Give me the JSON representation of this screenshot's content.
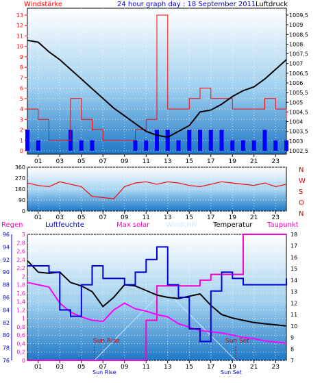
{
  "header": {
    "left_label": "Windstärke",
    "title": "24 hour graph day : 18 September 2011",
    "right_label": "Luftdruck"
  },
  "colors": {
    "wind": "#ff0000",
    "gust": "#0000ff",
    "pressure": "#000000",
    "frame": "#000000",
    "panel_top": "#ffffff",
    "panel_bottom": "#1e78c8",
    "humidity": "#0000dd",
    "solar": "#ff00cc",
    "windchill": "#c8e6ff",
    "temperature": "#000000",
    "dewpoint": "#ff00ff",
    "rain": "#ff0000",
    "sun_marker": "#cc0000"
  },
  "chart_data": [
    {
      "id": "wind-pressure",
      "type": "line",
      "x": {
        "ticks": [
          "01",
          "03",
          "05",
          "07",
          "09",
          "11",
          "13",
          "15",
          "17",
          "19",
          "21",
          "23"
        ]
      },
      "y_left": {
        "label": "Windstärke",
        "ticks": [
          "0",
          "1",
          "2",
          "3",
          "4",
          "5",
          "6",
          "7",
          "8",
          "9",
          "10",
          "11",
          "12",
          "13"
        ],
        "range": [
          0,
          13
        ]
      },
      "y_right": {
        "label": "Luftdruck",
        "ticks": [
          "1002,5",
          "1003",
          "1003,5",
          "1004",
          "1004,5",
          "1005",
          "1005,5",
          "1006",
          "1006,5",
          "1007",
          "1007,5",
          "1008",
          "1008,5",
          "1009",
          "1009,5"
        ],
        "range": [
          1002.5,
          1009.5
        ]
      },
      "series": [
        {
          "name": "Luftdruck",
          "axis": "right",
          "x": [
            0,
            1,
            2,
            3,
            4,
            5,
            6,
            7,
            8,
            9,
            10,
            11,
            12,
            13,
            14,
            15,
            16,
            17,
            18,
            19,
            20,
            21,
            22,
            23,
            24
          ],
          "values": [
            1008.2,
            1008.1,
            1007.6,
            1007.2,
            1006.7,
            1006.2,
            1005.7,
            1005.2,
            1004.7,
            1004.3,
            1003.9,
            1003.5,
            1003.3,
            1003.2,
            1003.5,
            1003.8,
            1004.5,
            1004.6,
            1004.9,
            1005.3,
            1005.6,
            1005.8,
            1006.2,
            1006.7,
            1007.2
          ]
        },
        {
          "name": "Wind",
          "axis": "left",
          "x": [
            0,
            1,
            2,
            3,
            4,
            5,
            6,
            7,
            8,
            9,
            10,
            11,
            12,
            13,
            14,
            15,
            16,
            17,
            18,
            19,
            20,
            21,
            22,
            23,
            24
          ],
          "values": [
            4,
            3,
            1,
            1,
            5,
            3,
            2,
            1,
            1,
            1,
            2,
            3,
            13,
            4,
            4,
            5,
            6,
            5,
            5,
            4,
            4,
            4,
            5,
            4,
            3
          ]
        },
        {
          "name": "Böen",
          "axis": "left",
          "x": [
            0,
            1,
            2,
            3,
            4,
            5,
            6,
            7,
            8,
            9,
            10,
            11,
            12,
            13,
            14,
            15,
            16,
            17,
            18,
            19,
            20,
            21,
            22,
            23,
            24
          ],
          "values": [
            2,
            1,
            0,
            0,
            2,
            1,
            1,
            0,
            0,
            0,
            1,
            1,
            2,
            2,
            1,
            2,
            2,
            2,
            2,
            1,
            1,
            1,
            2,
            1,
            1
          ]
        }
      ]
    },
    {
      "id": "wind-direction",
      "type": "line",
      "x": {
        "ticks": [
          "01",
          "03",
          "05",
          "07",
          "09",
          "11",
          "13",
          "15",
          "17",
          "19",
          "21",
          "23"
        ]
      },
      "y_left": {
        "ticks": [
          "360",
          "270",
          "180",
          "90",
          "0"
        ],
        "range": [
          0,
          360
        ]
      },
      "y_right": {
        "ticks": [
          "N",
          "W",
          "S",
          "O",
          "N"
        ]
      },
      "series": [
        {
          "name": "Windrichtung",
          "x": [
            0,
            1,
            2,
            3,
            4,
            5,
            6,
            7,
            8,
            9,
            10,
            11,
            12,
            13,
            14,
            15,
            16,
            17,
            18,
            19,
            20,
            21,
            22,
            23,
            24
          ],
          "values": [
            230,
            210,
            200,
            240,
            220,
            200,
            120,
            110,
            100,
            200,
            230,
            240,
            220,
            240,
            230,
            210,
            200,
            220,
            240,
            230,
            220,
            210,
            230,
            200,
            220
          ]
        }
      ]
    },
    {
      "id": "weather-combined",
      "type": "line",
      "legend": [
        "Regen",
        "Luftfeuchte",
        "Max solar",
        "Windchill",
        "Temperatur",
        "Taupunkt"
      ],
      "x": {
        "ticks": [
          "01",
          "03",
          "05",
          "07",
          "09",
          "11",
          "13",
          "15",
          "17",
          "19",
          "21",
          "23"
        ]
      },
      "y_rain": {
        "label": "Regen",
        "ticks": [
          "0",
          "0,2",
          "0,4",
          "0,6",
          "0,8",
          "1",
          "1,2",
          "1,4",
          "1,6",
          "1,8",
          "2",
          "2,2",
          "2,4",
          "2,6",
          "2,8",
          "3"
        ],
        "range": [
          0,
          3
        ]
      },
      "y_humidity": {
        "label": "Luftfeuchte",
        "ticks": [
          "76",
          "78",
          "80",
          "82",
          "84",
          "86",
          "88",
          "90",
          "92",
          "94",
          "96"
        ],
        "range": [
          76,
          96
        ]
      },
      "y_temp": {
        "label": "Temperatur",
        "ticks": [
          "7",
          "8",
          "9",
          "10",
          "11",
          "12",
          "13",
          "14",
          "15",
          "16",
          "17",
          "18"
        ],
        "range": [
          7,
          18
        ]
      },
      "annotations": {
        "sun_rise": "Sun Rise",
        "sun_set": "Sun Set",
        "sun_rise_axis": "Sun Rise",
        "sun_set_axis": "Sun Set"
      },
      "series": [
        {
          "name": "Luftfeuchte",
          "x": [
            0,
            1,
            2,
            3,
            4,
            5,
            6,
            7,
            8,
            9,
            10,
            11,
            12,
            13,
            14,
            15,
            16,
            17,
            18,
            19,
            20,
            21,
            22,
            23,
            24
          ],
          "values": [
            91,
            91,
            90,
            84,
            83,
            88,
            91,
            89,
            89,
            88,
            90,
            92,
            94,
            88,
            86,
            81,
            79,
            87,
            90,
            89,
            88,
            88,
            88,
            88,
            89
          ]
        },
        {
          "name": "Temperatur",
          "x": [
            0,
            1,
            2,
            3,
            4,
            5,
            6,
            7,
            8,
            9,
            10,
            11,
            12,
            13,
            14,
            15,
            16,
            17,
            18,
            19,
            20,
            21,
            22,
            23,
            24
          ],
          "values": [
            15.7,
            14.7,
            14.6,
            14.7,
            13.8,
            13.5,
            13.0,
            11.7,
            12.5,
            13.6,
            13.5,
            13.1,
            12.7,
            12.5,
            12.4,
            12.6,
            12.8,
            11.8,
            11.0,
            10.7,
            10.5,
            10.3,
            10.2,
            10.1,
            10.0
          ]
        },
        {
          "name": "Taupunkt",
          "x": [
            0,
            1,
            2,
            3,
            4,
            5,
            6,
            7,
            8,
            9,
            10,
            11,
            12,
            13,
            14,
            15,
            16,
            17,
            18,
            19,
            20,
            21,
            22,
            23,
            24
          ],
          "values": [
            13.8,
            13.6,
            13.4,
            12.0,
            11.2,
            10.8,
            10.5,
            10.4,
            11.4,
            12.0,
            11.5,
            11.3,
            11.0,
            10.8,
            10.2,
            9.9,
            9.6,
            9.5,
            9.4,
            9.2,
            9.0,
            8.9,
            8.7,
            8.6,
            8.5
          ]
        },
        {
          "name": "Max solar",
          "x": [
            0,
            1,
            2,
            3,
            4,
            5,
            6,
            7,
            8,
            9,
            10,
            11,
            12,
            13,
            14,
            15,
            16,
            17,
            18,
            19,
            20,
            21,
            22,
            23,
            24
          ],
          "values": [
            7.0,
            7.0,
            7.0,
            7.0,
            7.0,
            7.0,
            7.0,
            7.0,
            7.0,
            7.0,
            7.0,
            10.5,
            13.5,
            13.5,
            13.5,
            13.5,
            14.0,
            14.5,
            14.5,
            14.5,
            18.0,
            18.0,
            18.0,
            18.0,
            18.0
          ]
        }
      ]
    }
  ]
}
